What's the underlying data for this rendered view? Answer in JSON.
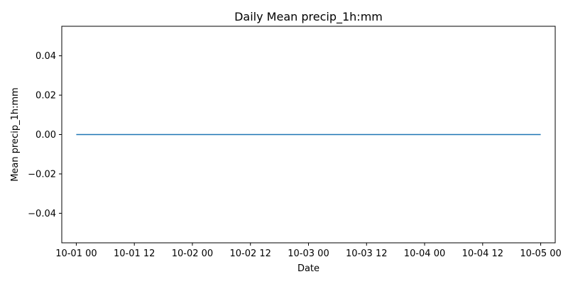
{
  "chart_data": {
    "type": "line",
    "title": "Daily Mean precip_1h:mm",
    "xlabel": "Date",
    "ylabel": "Mean precip_1h:mm",
    "x_ticks": [
      "10-01 00",
      "10-01 12",
      "10-02 00",
      "10-02 12",
      "10-03 00",
      "10-03 12",
      "10-04 00",
      "10-04 12",
      "10-05 00"
    ],
    "y_ticks": [
      "0.04",
      "0.02",
      "0.00",
      "−0.02",
      "−0.04"
    ],
    "y_tick_values": [
      0.04,
      0.02,
      0.0,
      -0.02,
      -0.04
    ],
    "ylim": [
      -0.055,
      0.055
    ],
    "xlim": [
      "2023-09-30T21:00",
      "2023-10-05T03:00"
    ],
    "grid": false,
    "series": [
      {
        "color": "#1f77b4",
        "x": [
          "2023-10-01",
          "2023-10-02",
          "2023-10-03",
          "2023-10-04",
          "2023-10-05"
        ],
        "values": [
          0.0,
          0.0,
          0.0,
          0.0,
          0.0
        ]
      }
    ]
  }
}
